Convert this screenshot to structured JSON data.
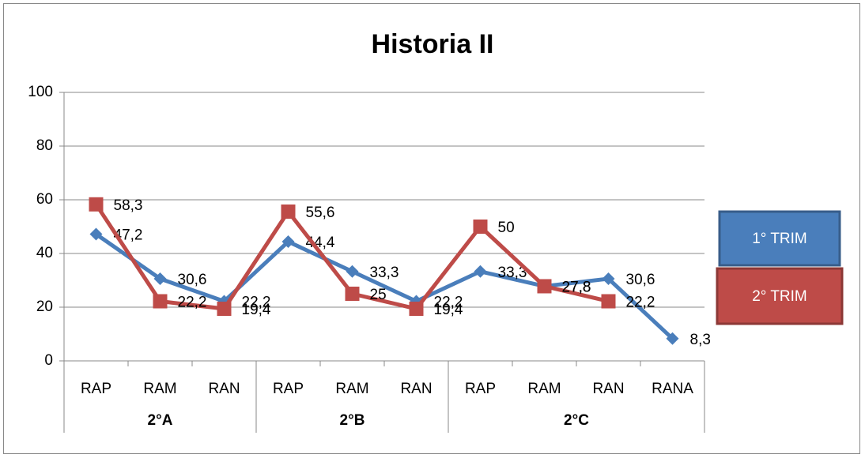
{
  "chart_data": {
    "type": "line",
    "title": "Historia II",
    "categories": [
      "RAP",
      "RAM",
      "RAN",
      "RAP",
      "RAM",
      "RAN",
      "RAP",
      "RAM",
      "RAN",
      "RANA"
    ],
    "group_labels": [
      "2°A",
      "2°B",
      "2°C"
    ],
    "group_sizes": [
      3,
      3,
      4
    ],
    "series": [
      {
        "name": "1° TRIM",
        "color": "#4a7ebb",
        "marker": "diamond",
        "values": [
          47.2,
          30.6,
          22.2,
          44.4,
          33.3,
          22.2,
          33.3,
          27.8,
          30.6,
          8.3
        ],
        "value_labels": [
          "47,2",
          "30,6",
          "22,2",
          "44,4",
          "33,3",
          "22,2",
          "33,3",
          "27,8",
          "30,6",
          "8,3"
        ]
      },
      {
        "name": "2° TRIM",
        "color": "#be4b48",
        "marker": "square",
        "values": [
          58.3,
          22.2,
          19.4,
          55.6,
          25,
          19.4,
          50,
          27.8,
          22.2,
          null
        ],
        "value_labels": [
          "58,3",
          "22,2",
          "19,4",
          "55,6",
          "25",
          "19,4",
          "50",
          "27,8",
          "22,2",
          null
        ]
      }
    ],
    "ylim": [
      0,
      100
    ],
    "yticks": [
      0,
      20,
      40,
      60,
      80,
      100
    ],
    "grid": true,
    "legend": "right"
  }
}
